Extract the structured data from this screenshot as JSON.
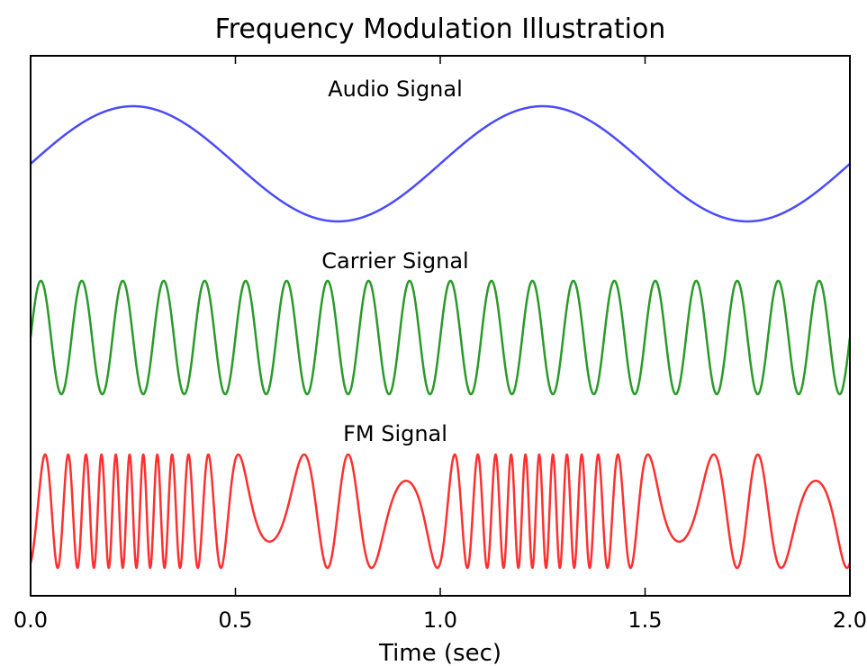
{
  "chart_data": {
    "type": "line",
    "title": "Frequency Modulation Illustration",
    "xlabel": "Time (sec)",
    "ylabel": "",
    "xlim": [
      0.0,
      2.0
    ],
    "x_ticks": [
      0.0,
      0.5,
      1.0,
      1.5,
      2.0
    ],
    "x_tick_labels": [
      "0.0",
      "0.5",
      "1.0",
      "1.5",
      "2.0"
    ],
    "y_ticks_visible": false,
    "grid": false,
    "legend": "none",
    "series": [
      {
        "name": "Audio Signal",
        "color": "#4a4aff",
        "formula": "sin(2*pi*1*t)",
        "frequency_hz": 1,
        "amplitude": 1
      },
      {
        "name": "Carrier Signal",
        "color": "#2a9a2a",
        "formula": "sin(2*pi*10*t)",
        "frequency_hz": 10,
        "amplitude": 1
      },
      {
        "name": "FM Signal",
        "color": "#ff3030",
        "formula": "sin(2*pi*10*t - 20*cos(2*pi*1*t))",
        "carrier_frequency_hz": 10,
        "modulation_frequency_hz": 1,
        "modulation_index": 20,
        "amplitude": 1
      }
    ]
  }
}
